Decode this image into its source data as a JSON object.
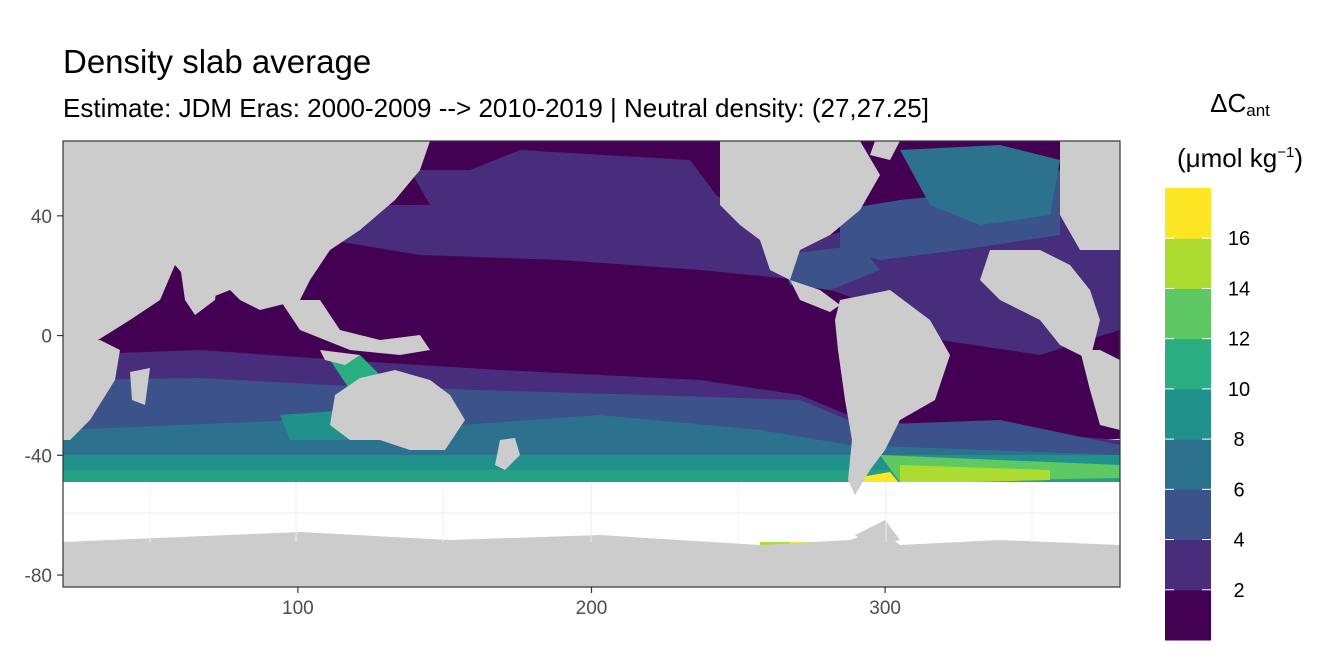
{
  "title": "Density slab average",
  "subtitle": "Estimate: JDM Eras: 2000-2009 --> 2010-2019 | Neutral density: (27,27.25]",
  "colors": {
    "land": "#cccccc",
    "no_data": "#ffffff",
    "panel_border": "#333333",
    "viridis": [
      "#440154",
      "#472d7b",
      "#3b528b",
      "#2c728e",
      "#21918c",
      "#28ae80",
      "#5ec962",
      "#addc30",
      "#fde725"
    ]
  },
  "map": {
    "x_axis": {
      "ticks": [
        100,
        200,
        300
      ],
      "range": [
        20,
        380
      ]
    },
    "y_axis": {
      "ticks": [
        40,
        0,
        -40,
        -80
      ],
      "range": [
        -84,
        65
      ]
    },
    "grid": true
  },
  "legend": {
    "title_main": "ΔC",
    "title_sub": "ant",
    "unit_pre": "(μmol kg",
    "unit_sup": "−1",
    "unit_post": ")",
    "breaks": [
      2,
      4,
      6,
      8,
      10,
      12,
      14,
      16
    ]
  }
}
